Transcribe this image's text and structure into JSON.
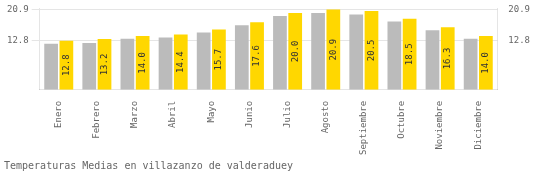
{
  "chart_data": {
    "type": "bar",
    "title": "Temperaturas Medias en villazanzo de valderaduey",
    "categories": [
      "Enero",
      "Febrero",
      "Marzo",
      "Abril",
      "Mayo",
      "Junio",
      "Julio",
      "Agosto",
      "Septiembre",
      "Octubre",
      "Noviembre",
      "Diciembre"
    ],
    "series": [
      {
        "color": "#BBBBBB",
        "values": [
          12.0,
          12.2,
          13.3,
          13.6,
          14.9,
          16.8,
          19.2,
          20.0,
          19.6,
          17.8,
          15.5,
          13.3
        ]
      },
      {
        "color": "#FFD700",
        "values": [
          12.8,
          13.2,
          14.0,
          14.4,
          15.7,
          17.6,
          20.0,
          20.9,
          20.5,
          18.5,
          16.3,
          14.0
        ],
        "data_labels": true,
        "value_labels": [
          "12.8",
          "13.2",
          "14.0",
          "14.4",
          "15.7",
          "17.6",
          "20.0",
          "20.9",
          "20.5",
          "18.5",
          "16.3",
          "14.0"
        ]
      }
    ],
    "ylim": [
      0,
      21.2
    ],
    "yticks": [
      12.8,
      20.9
    ],
    "y2lim": [
      0,
      21.2
    ],
    "y2ticks": [
      12.8,
      20.9
    ],
    "grid": true
  }
}
